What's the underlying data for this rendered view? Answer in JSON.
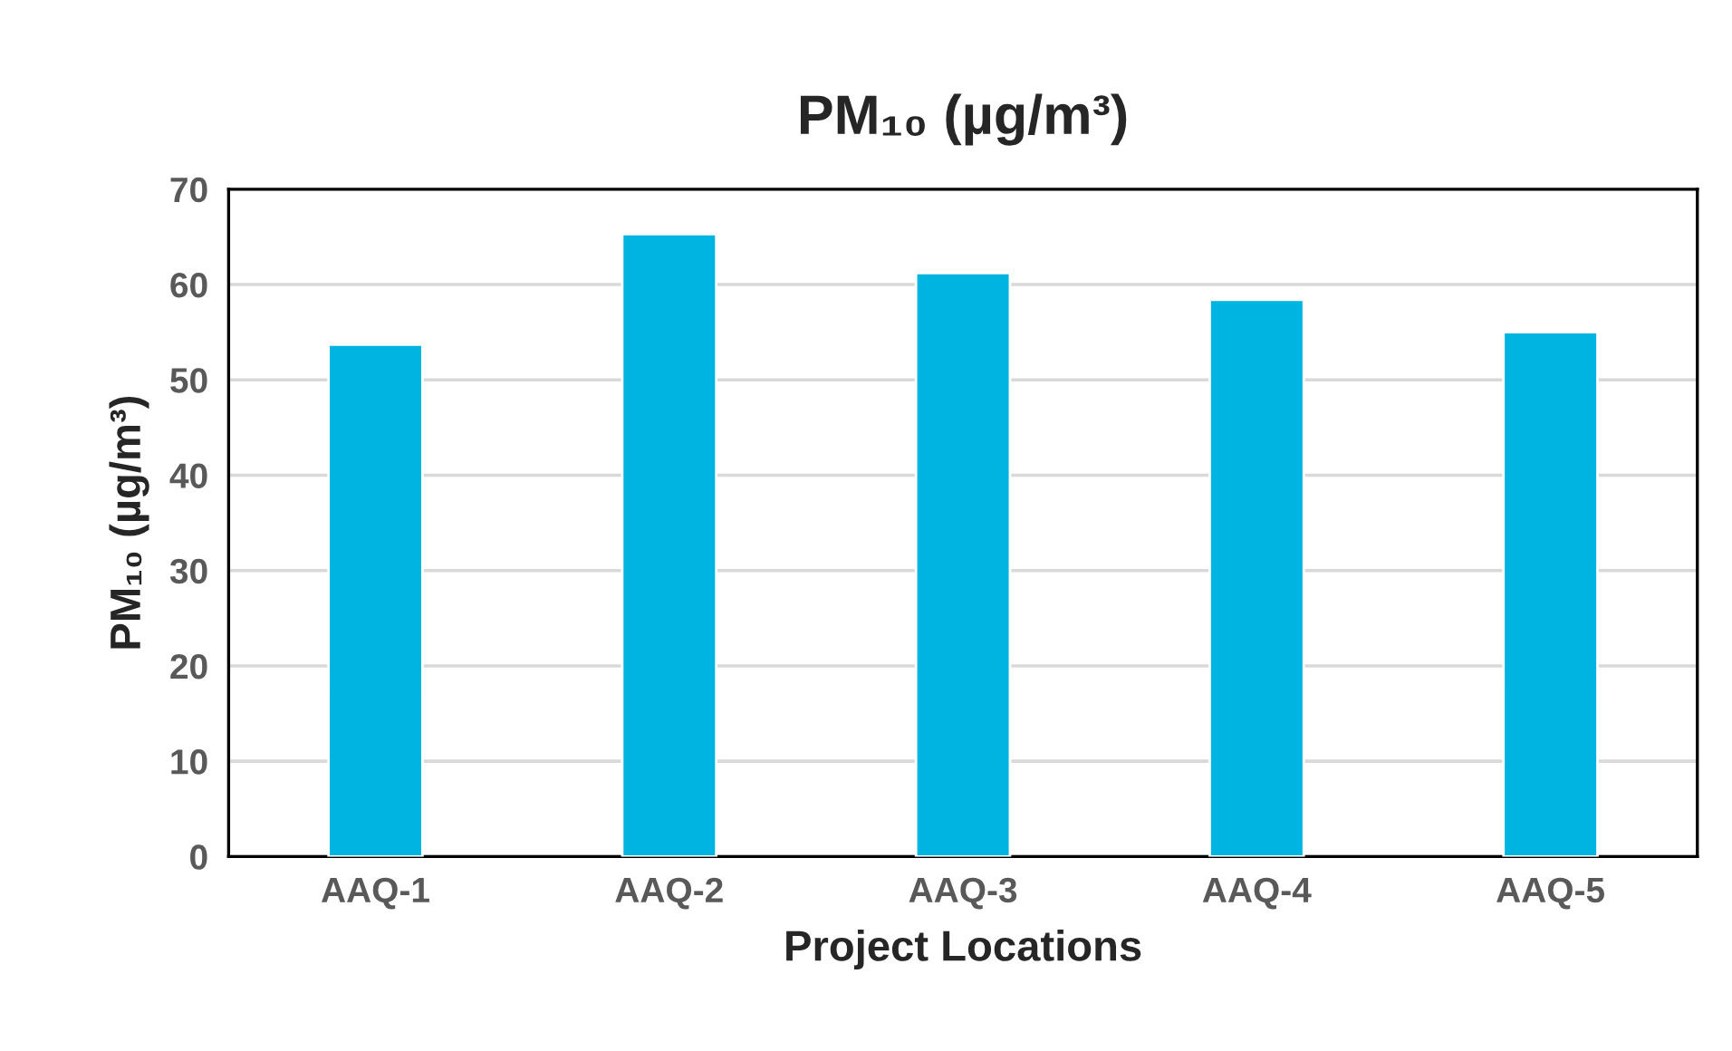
{
  "chart_data": {
    "type": "bar",
    "title": "PM₁₀ (µg/m³)",
    "xlabel": "Project Locations",
    "ylabel": "PM₁₀ (µg/m³)",
    "categories": [
      "AAQ-1",
      "AAQ-2",
      "AAQ-3",
      "AAQ-4",
      "AAQ-5"
    ],
    "values": [
      53.7,
      65.3,
      61.2,
      58.4,
      55.0
    ],
    "color": "#00b4e1",
    "ylim": [
      0,
      70
    ],
    "yticks": [
      0,
      10,
      20,
      30,
      40,
      50,
      60,
      70
    ],
    "grid": "y"
  }
}
